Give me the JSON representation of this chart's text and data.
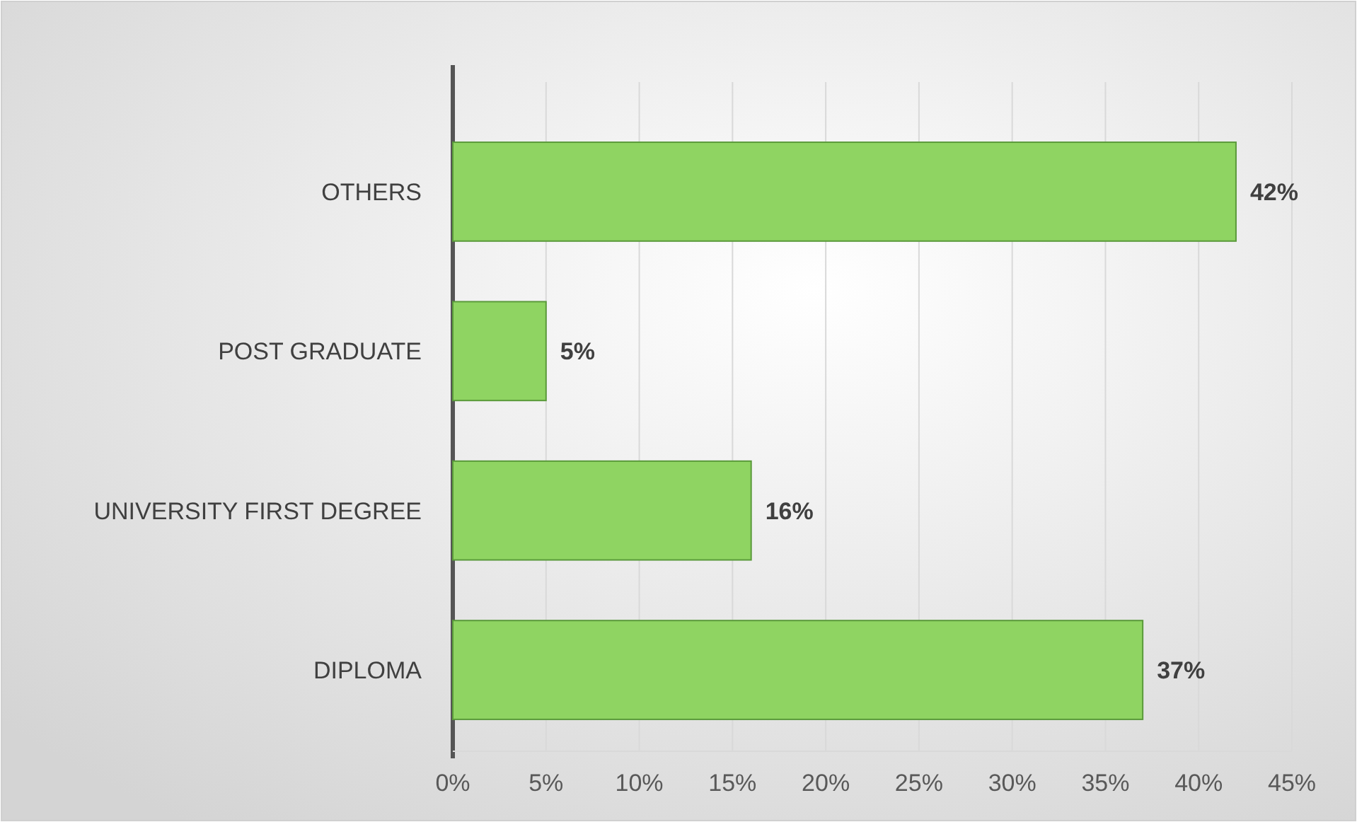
{
  "chart_data": {
    "type": "bar",
    "orientation": "horizontal",
    "categories": [
      "OTHERS",
      "POST GRADUATE",
      "UNIVERSITY FIRST DEGREE",
      "DIPLOMA"
    ],
    "values": [
      42,
      5,
      16,
      37
    ],
    "color": "#8fd462",
    "value_labels": [
      "42%",
      "5%",
      "16%",
      "37%"
    ],
    "xlim": [
      0,
      45
    ],
    "xticks": [
      {
        "value": 0,
        "label": "0%"
      },
      {
        "value": 5,
        "label": "5%"
      },
      {
        "value": 10,
        "label": "10%"
      },
      {
        "value": 15,
        "label": "15%"
      },
      {
        "value": 20,
        "label": "20%"
      },
      {
        "value": 25,
        "label": "25%"
      },
      {
        "value": 30,
        "label": "30%"
      },
      {
        "value": 35,
        "label": "35%"
      },
      {
        "value": 40,
        "label": "40%"
      },
      {
        "value": 45,
        "label": "45%"
      }
    ],
    "grid": "x"
  }
}
